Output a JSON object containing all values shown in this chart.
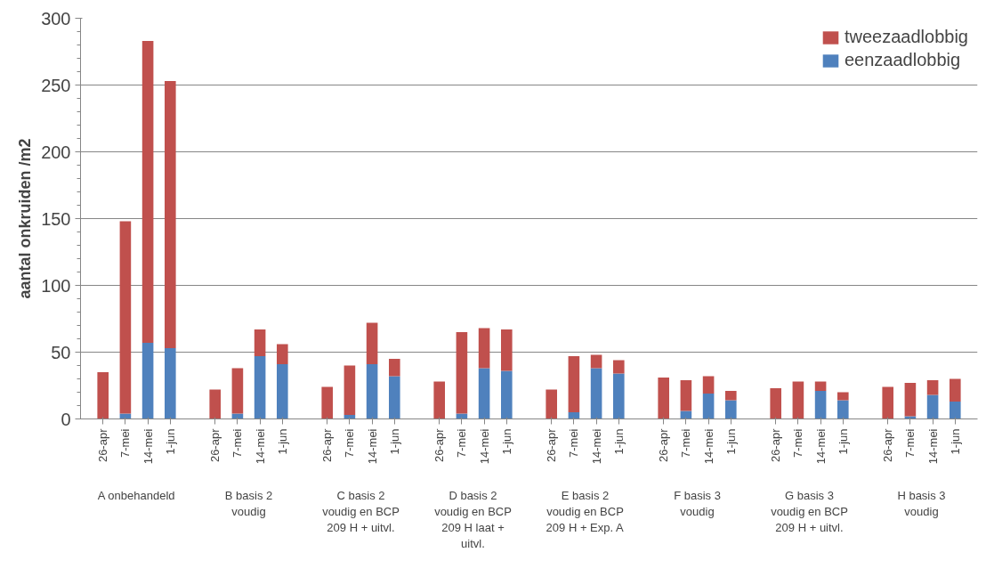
{
  "chart_data": {
    "type": "bar",
    "stacked": true,
    "ylabel": "aantal onkruiden /m2",
    "categories": [
      "26-apr",
      "7-mei",
      "14-mei",
      "1-jun",
      "26-apr",
      "7-mei",
      "14-mei",
      "1-jun",
      "26-apr",
      "7-mei",
      "14-mei",
      "1-jun",
      "26-apr",
      "7-mei",
      "14-mei",
      "1-jun",
      "26-apr",
      "7-mei",
      "14-mei",
      "1-jun",
      "26-apr",
      "7-mei",
      "14-mei",
      "1-jun",
      "26-apr",
      "7-mei",
      "14-mei",
      "1-jun",
      "26-apr",
      "7-mei",
      "14-mei",
      "1-jun"
    ],
    "series": [
      {
        "name": "eenzaadlobbig",
        "color": "#4f81bd",
        "values": [
          0,
          4,
          57,
          53,
          0,
          4,
          47,
          41,
          0,
          3,
          41,
          32,
          0,
          4,
          38,
          36,
          0,
          5,
          38,
          34,
          0,
          6,
          19,
          14,
          0,
          null,
          21,
          14,
          0,
          2,
          18,
          13
        ]
      },
      {
        "name": "tweezaadlobbig",
        "color": "#c0504d",
        "values": [
          35,
          144,
          226,
          200,
          22,
          34,
          20,
          15,
          24,
          37,
          31,
          13,
          28,
          61,
          30,
          31,
          22,
          42,
          10,
          10,
          31,
          23,
          13,
          7,
          23,
          28,
          7,
          6,
          24,
          25,
          11,
          17
        ]
      }
    ],
    "annotations": [
      "A onbehandeld",
      "B basis 2 voudig",
      "C basis 2 voudig en BCP 209 H + uitvl.",
      "D basis 2 voudig en BCP 209 H laat + uitvl.",
      "E basis 2 voudig en BCP 209 H + Exp. A",
      "F basis 3 voudig",
      "G basis 3 voudig en BCP 209 H + uitvl.",
      "H basis 3 voudig"
    ],
    "ylim": [
      0,
      300
    ],
    "yticks": [
      0,
      50,
      100,
      150,
      200,
      250,
      300
    ],
    "grid": "y",
    "legend": "top right"
  }
}
